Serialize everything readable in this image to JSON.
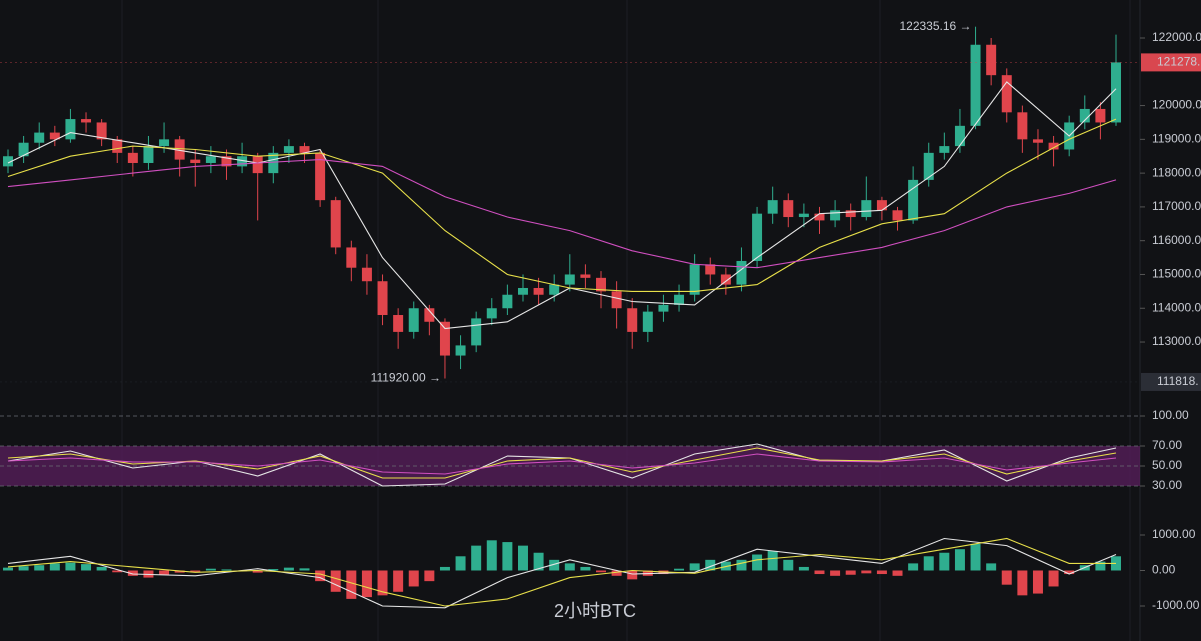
{
  "chart_data": [
    {
      "type": "candlestick",
      "open": [
        118200,
        118500,
        118900,
        119200,
        119000,
        119600,
        119500,
        119000,
        118600,
        118300,
        118800,
        119000,
        118400,
        118300,
        118500,
        118200,
        118500,
        118000,
        118600,
        118800,
        118600,
        117200,
        115800,
        115200,
        114800,
        113800,
        113300,
        114000,
        113600,
        112600,
        112900,
        113700,
        114000,
        114400,
        114600,
        114400,
        114700,
        115000,
        114900,
        114500,
        114000,
        113300,
        113900,
        114100,
        114400,
        115300,
        115000,
        114700,
        115400,
        116800,
        117200,
        116700,
        116800,
        116600,
        116900,
        116700,
        117200,
        116900,
        116600,
        117800,
        118600,
        118800,
        119400,
        121800,
        120900,
        119800,
        119000,
        118900,
        118700,
        119500,
        119900,
        119500
      ],
      "high": [
        118700,
        119100,
        119500,
        119400,
        119900,
        119800,
        119600,
        119100,
        118800,
        119100,
        119500,
        119100,
        118700,
        118800,
        118700,
        118900,
        118600,
        118800,
        119000,
        118900,
        118700,
        117300,
        116000,
        115600,
        115000,
        114000,
        114200,
        114100,
        113700,
        113200,
        113900,
        114300,
        114700,
        115000,
        114900,
        115000,
        115600,
        115300,
        115100,
        114800,
        114300,
        114100,
        114400,
        114700,
        115600,
        115500,
        115200,
        115800,
        117000,
        117600,
        117400,
        117100,
        117000,
        117200,
        117100,
        117900,
        117300,
        117000,
        118200,
        118900,
        119200,
        119900,
        122335.16,
        122000,
        121100,
        120000,
        119300,
        119100,
        119700,
        120300,
        120100,
        122100
      ],
      "low": [
        118000,
        118300,
        118700,
        118800,
        118900,
        119200,
        118800,
        118300,
        117900,
        118100,
        118600,
        117900,
        117600,
        118000,
        117800,
        118000,
        116600,
        117700,
        118300,
        118300,
        117000,
        115600,
        114800,
        114400,
        113500,
        112800,
        113100,
        113200,
        111920,
        112200,
        112700,
        113500,
        113800,
        114200,
        114100,
        114200,
        114500,
        114600,
        114000,
        113400,
        112800,
        113000,
        113600,
        113900,
        114200,
        114700,
        114400,
        114500,
        115200,
        116500,
        116400,
        116400,
        116200,
        116400,
        116300,
        116600,
        116600,
        116300,
        116500,
        117600,
        118400,
        118600,
        119300,
        120600,
        119500,
        118600,
        118400,
        118200,
        118500,
        119300,
        119000,
        119400
      ],
      "close": [
        118500,
        118900,
        119200,
        119000,
        119600,
        119500,
        119000,
        118600,
        118300,
        118800,
        119000,
        118400,
        118300,
        118500,
        118200,
        118500,
        118000,
        118600,
        118800,
        118600,
        117200,
        115800,
        115200,
        114800,
        113800,
        113300,
        114000,
        113600,
        112600,
        112900,
        113700,
        114000,
        114400,
        114600,
        114400,
        114700,
        115000,
        114900,
        114500,
        114000,
        113300,
        113900,
        114100,
        114400,
        115300,
        115000,
        114700,
        115400,
        116800,
        117200,
        116700,
        116800,
        116600,
        116900,
        116700,
        117200,
        116900,
        116600,
        117800,
        118600,
        118800,
        119400,
        121800,
        120900,
        119800,
        119000,
        118900,
        118700,
        119500,
        119900,
        119500,
        121278
      ],
      "up_color": "#2fae8f",
      "down_color": "#e0454c",
      "ylim": [
        111284,
        123125
      ],
      "yticks": [
        {
          "value": 113000,
          "label": "113000.00"
        },
        {
          "value": 114000,
          "label": "114000.00"
        },
        {
          "value": 115000,
          "label": "115000.00"
        },
        {
          "value": 116000,
          "label": "116000.00"
        },
        {
          "value": 117000,
          "label": "117000.00"
        },
        {
          "value": 118000,
          "label": "118000.00"
        },
        {
          "value": 119000,
          "label": "119000.00"
        },
        {
          "value": 120000,
          "label": "120000.00"
        },
        {
          "value": 122000,
          "label": "122000.00"
        }
      ],
      "series": [
        {
          "color": "#e6e6e6",
          "x": [
            0,
            4,
            8,
            12,
            16,
            20,
            24,
            28,
            32,
            36,
            40,
            44,
            48,
            52,
            56,
            60,
            64,
            68,
            71
          ],
          "values": [
            118300,
            119200,
            118900,
            118600,
            118300,
            118700,
            115500,
            113400,
            113600,
            114600,
            114200,
            114100,
            115500,
            116800,
            116900,
            118200,
            120700,
            119100,
            120500
          ]
        },
        {
          "color": "#e8e04a",
          "x": [
            0,
            4,
            8,
            12,
            16,
            20,
            24,
            28,
            32,
            36,
            40,
            44,
            48,
            52,
            56,
            60,
            64,
            68,
            71
          ],
          "values": [
            117900,
            118500,
            118800,
            118700,
            118500,
            118600,
            118000,
            116300,
            115000,
            114600,
            114500,
            114500,
            114700,
            115800,
            116500,
            116800,
            118000,
            119000,
            119600
          ]
        },
        {
          "color": "#d04fc0",
          "x": [
            0,
            4,
            8,
            12,
            16,
            20,
            24,
            28,
            32,
            36,
            40,
            44,
            48,
            52,
            56,
            60,
            64,
            68,
            71
          ],
          "values": [
            117600,
            117800,
            118000,
            118200,
            118300,
            118400,
            118200,
            117300,
            116700,
            116300,
            115700,
            115300,
            115200,
            115500,
            115800,
            116300,
            117000,
            117400,
            117800
          ]
        }
      ],
      "annotations": [
        {
          "text": "122335.16 →",
          "value": 122335.16,
          "index": 62
        },
        {
          "text": "111920.00 →",
          "value": 111920,
          "index": 28
        }
      ],
      "price_tags": [
        {
          "value": 121278,
          "label": "121278.",
          "color": "#d9474f"
        },
        {
          "value": 111818,
          "label": "111818.",
          "color": "#2b2e36"
        }
      ]
    },
    {
      "type": "line",
      "ylim": [
        -5,
        110
      ],
      "yticks": [
        {
          "value": 100,
          "label": "100.00"
        },
        {
          "value": 70,
          "label": "70.00"
        },
        {
          "value": 50,
          "label": "50.00"
        },
        {
          "value": 30,
          "label": "30.00"
        }
      ],
      "band": [
        30,
        70
      ],
      "band_color": "#5a1f5e",
      "series": [
        {
          "color": "#e6e6e6",
          "x": [
            0,
            4,
            8,
            12,
            16,
            20,
            24,
            28,
            32,
            36,
            40,
            44,
            48,
            52,
            56,
            60,
            64,
            68,
            71
          ],
          "values": [
            55,
            65,
            48,
            55,
            40,
            62,
            30,
            32,
            60,
            58,
            38,
            62,
            72,
            55,
            55,
            66,
            35,
            58,
            68
          ]
        },
        {
          "color": "#e8e04a",
          "x": [
            0,
            4,
            8,
            12,
            16,
            20,
            24,
            28,
            32,
            36,
            40,
            44,
            48,
            52,
            56,
            60,
            64,
            68,
            71
          ],
          "values": [
            58,
            62,
            52,
            55,
            47,
            60,
            38,
            38,
            55,
            58,
            44,
            56,
            68,
            56,
            55,
            62,
            42,
            55,
            63
          ]
        },
        {
          "color": "#d04fc0",
          "x": [
            0,
            4,
            8,
            12,
            16,
            20,
            24,
            28,
            32,
            36,
            40,
            44,
            48,
            52,
            56,
            60,
            64,
            68,
            71
          ],
          "values": [
            55,
            58,
            54,
            54,
            50,
            56,
            44,
            42,
            52,
            55,
            48,
            53,
            62,
            55,
            54,
            58,
            46,
            53,
            58
          ]
        }
      ]
    },
    {
      "type": "macd",
      "ylim": [
        -1986,
        1394
      ],
      "yticks": [
        {
          "value": 1000,
          "label": "1000.00"
        },
        {
          "value": 0,
          "label": "0.00"
        },
        {
          "value": -1000,
          "label": "-1000.00"
        }
      ],
      "histogram": [
        80,
        120,
        150,
        200,
        220,
        180,
        100,
        -50,
        -150,
        -200,
        -120,
        -60,
        -40,
        50,
        30,
        -20,
        -60,
        40,
        80,
        60,
        -300,
        -600,
        -800,
        -750,
        -700,
        -600,
        -450,
        -300,
        100,
        400,
        700,
        850,
        800,
        700,
        500,
        300,
        200,
        100,
        -50,
        -150,
        -250,
        -150,
        -100,
        50,
        200,
        300,
        250,
        300,
        450,
        550,
        300,
        100,
        -100,
        -150,
        -120,
        -80,
        -100,
        -150,
        200,
        400,
        500,
        600,
        750,
        200,
        -400,
        -700,
        -650,
        -450,
        -100,
        150,
        250,
        400
      ],
      "up_color": "#2fae8f",
      "down_color": "#e0454c",
      "series": [
        {
          "color": "#e6e6e6",
          "x": [
            0,
            4,
            8,
            12,
            16,
            20,
            24,
            28,
            32,
            36,
            40,
            44,
            48,
            52,
            56,
            60,
            64,
            68,
            71
          ],
          "values": [
            200,
            400,
            -100,
            -150,
            50,
            -200,
            -1000,
            -1050,
            -200,
            300,
            -100,
            -50,
            600,
            400,
            200,
            900,
            700,
            -100,
            450
          ]
        },
        {
          "color": "#e8e04a",
          "x": [
            0,
            4,
            8,
            12,
            16,
            20,
            24,
            28,
            32,
            36,
            40,
            44,
            48,
            52,
            56,
            60,
            64,
            68,
            71
          ],
          "values": [
            100,
            250,
            100,
            -50,
            0,
            -100,
            -600,
            -1000,
            -800,
            -200,
            0,
            -80,
            300,
            450,
            300,
            600,
            900,
            200,
            200
          ]
        }
      ],
      "caption": {
        "text": "2小时BTC",
        "color": "#e8262c"
      }
    }
  ]
}
